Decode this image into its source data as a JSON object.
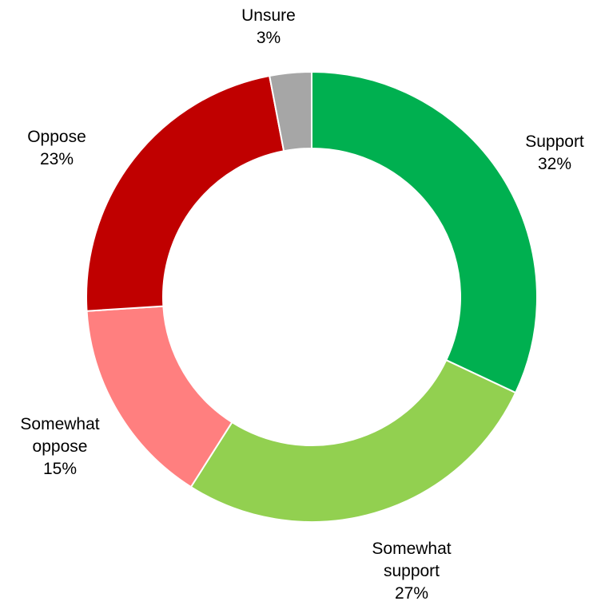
{
  "chart_data": {
    "type": "pie",
    "variant": "donut",
    "start_angle": "12 o'clock",
    "direction": "clockwise",
    "legend": "none",
    "slices": [
      {
        "label_line1": "Support",
        "label_line2": "",
        "value": 32,
        "value_label": "32%",
        "color": "#00B050"
      },
      {
        "label_line1": "Somewhat",
        "label_line2": "support",
        "value": 27,
        "value_label": "27%",
        "color": "#92D050"
      },
      {
        "label_line1": "Somewhat",
        "label_line2": "oppose",
        "value": 15,
        "value_label": "15%",
        "color": "#FF7F7F"
      },
      {
        "label_line1": "Oppose",
        "label_line2": "",
        "value": 23,
        "value_label": "23%",
        "color": "#C00000"
      },
      {
        "label_line1": "Unsure",
        "label_line2": "",
        "value": 3,
        "value_label": "3%",
        "color": "#A6A6A6"
      }
    ]
  }
}
